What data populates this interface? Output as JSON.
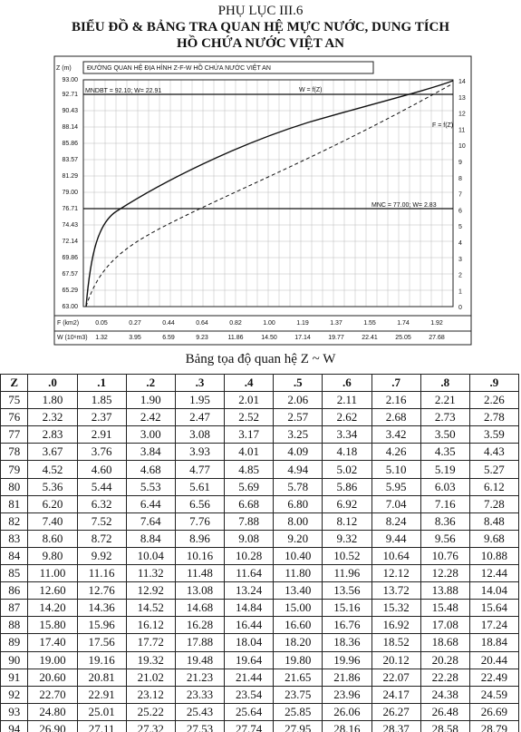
{
  "header": {
    "appendix": "PHỤ LỤC III.6",
    "title": "BIỂU ĐỒ & BẢNG TRA QUAN HỆ MỰC NƯỚC, DUNG TÍCH",
    "subtitle": "HỒ CHỨA NƯỚC VIỆT AN"
  },
  "figure": {
    "title": "ĐƯỜNG QUAN HỆ ĐỊA HÌNH Z-F-W   HỒ CHỨA NƯỚC VIỆT AN",
    "y_label": "Z (m)",
    "y_labels": [
      "93.00",
      "92.71",
      "90.43",
      "88.14",
      "85.86",
      "83.57",
      "81.29",
      "79.00",
      "76.71",
      "74.43",
      "72.14",
      "69.86",
      "67.57",
      "65.29",
      "63.00"
    ],
    "right_labels": [
      "14",
      "13",
      "12",
      "11",
      "10",
      "9",
      "8",
      "7",
      "6",
      "5",
      "4",
      "3",
      "2",
      "1",
      "0"
    ],
    "f_row_label": "F (km2)",
    "f_values": [
      "0.05",
      "0.27",
      "0.44",
      "0.64",
      "0.82",
      "1.00",
      "1.19",
      "1.37",
      "1.55",
      "1.74",
      "1.92"
    ],
    "w_row_label": "W (10⁶m3)",
    "w_values": [
      "1.32",
      "3.95",
      "6.59",
      "9.23",
      "11.86",
      "14.50",
      "17.14",
      "19.77",
      "22.41",
      "25.05",
      "27.68"
    ],
    "mndbt": "MNDBT = 92.10;  W= 22.91",
    "mnc": "MNC = 77.00;  W= 2.83",
    "w_curve": "W = f(Z)",
    "f_curve": "F = f(Z)"
  },
  "table": {
    "caption": "Bảng tọa độ quan hệ Z ~ W",
    "header": [
      "Z",
      ".0",
      ".1",
      ".2",
      ".3",
      ".4",
      ".5",
      ".6",
      ".7",
      ".8",
      ".9"
    ],
    "rows": [
      [
        "75",
        "1.80",
        "1.85",
        "1.90",
        "1.95",
        "2.01",
        "2.06",
        "2.11",
        "2.16",
        "2.21",
        "2.26"
      ],
      [
        "76",
        "2.32",
        "2.37",
        "2.42",
        "2.47",
        "2.52",
        "2.57",
        "2.62",
        "2.68",
        "2.73",
        "2.78"
      ],
      [
        "77",
        "2.83",
        "2.91",
        "3.00",
        "3.08",
        "3.17",
        "3.25",
        "3.34",
        "3.42",
        "3.50",
        "3.59"
      ],
      [
        "78",
        "3.67",
        "3.76",
        "3.84",
        "3.93",
        "4.01",
        "4.09",
        "4.18",
        "4.26",
        "4.35",
        "4.43"
      ],
      [
        "79",
        "4.52",
        "4.60",
        "4.68",
        "4.77",
        "4.85",
        "4.94",
        "5.02",
        "5.10",
        "5.19",
        "5.27"
      ],
      [
        "80",
        "5.36",
        "5.44",
        "5.53",
        "5.61",
        "5.69",
        "5.78",
        "5.86",
        "5.95",
        "6.03",
        "6.12"
      ],
      [
        "81",
        "6.20",
        "6.32",
        "6.44",
        "6.56",
        "6.68",
        "6.80",
        "6.92",
        "7.04",
        "7.16",
        "7.28"
      ],
      [
        "82",
        "7.40",
        "7.52",
        "7.64",
        "7.76",
        "7.88",
        "8.00",
        "8.12",
        "8.24",
        "8.36",
        "8.48"
      ],
      [
        "83",
        "8.60",
        "8.72",
        "8.84",
        "8.96",
        "9.08",
        "9.20",
        "9.32",
        "9.44",
        "9.56",
        "9.68"
      ],
      [
        "84",
        "9.80",
        "9.92",
        "10.04",
        "10.16",
        "10.28",
        "10.40",
        "10.52",
        "10.64",
        "10.76",
        "10.88"
      ],
      [
        "85",
        "11.00",
        "11.16",
        "11.32",
        "11.48",
        "11.64",
        "11.80",
        "11.96",
        "12.12",
        "12.28",
        "12.44"
      ],
      [
        "86",
        "12.60",
        "12.76",
        "12.92",
        "13.08",
        "13.24",
        "13.40",
        "13.56",
        "13.72",
        "13.88",
        "14.04"
      ],
      [
        "87",
        "14.20",
        "14.36",
        "14.52",
        "14.68",
        "14.84",
        "15.00",
        "15.16",
        "15.32",
        "15.48",
        "15.64"
      ],
      [
        "88",
        "15.80",
        "15.96",
        "16.12",
        "16.28",
        "16.44",
        "16.60",
        "16.76",
        "16.92",
        "17.08",
        "17.24"
      ],
      [
        "89",
        "17.40",
        "17.56",
        "17.72",
        "17.88",
        "18.04",
        "18.20",
        "18.36",
        "18.52",
        "18.68",
        "18.84"
      ],
      [
        "90",
        "19.00",
        "19.16",
        "19.32",
        "19.48",
        "19.64",
        "19.80",
        "19.96",
        "20.12",
        "20.28",
        "20.44"
      ],
      [
        "91",
        "20.60",
        "20.81",
        "21.02",
        "21.23",
        "21.44",
        "21.65",
        "21.86",
        "22.07",
        "22.28",
        "22.49"
      ],
      [
        "92",
        "22.70",
        "22.91",
        "23.12",
        "23.33",
        "23.54",
        "23.75",
        "23.96",
        "24.17",
        "24.38",
        "24.59"
      ],
      [
        "93",
        "24.80",
        "25.01",
        "25.22",
        "25.43",
        "25.64",
        "25.85",
        "26.06",
        "26.27",
        "26.48",
        "26.69"
      ],
      [
        "94",
        "26.90",
        "27.11",
        "27.32",
        "27.53",
        "27.74",
        "27.95",
        "28.16",
        "28.37",
        "28.58",
        "28.79"
      ]
    ]
  }
}
